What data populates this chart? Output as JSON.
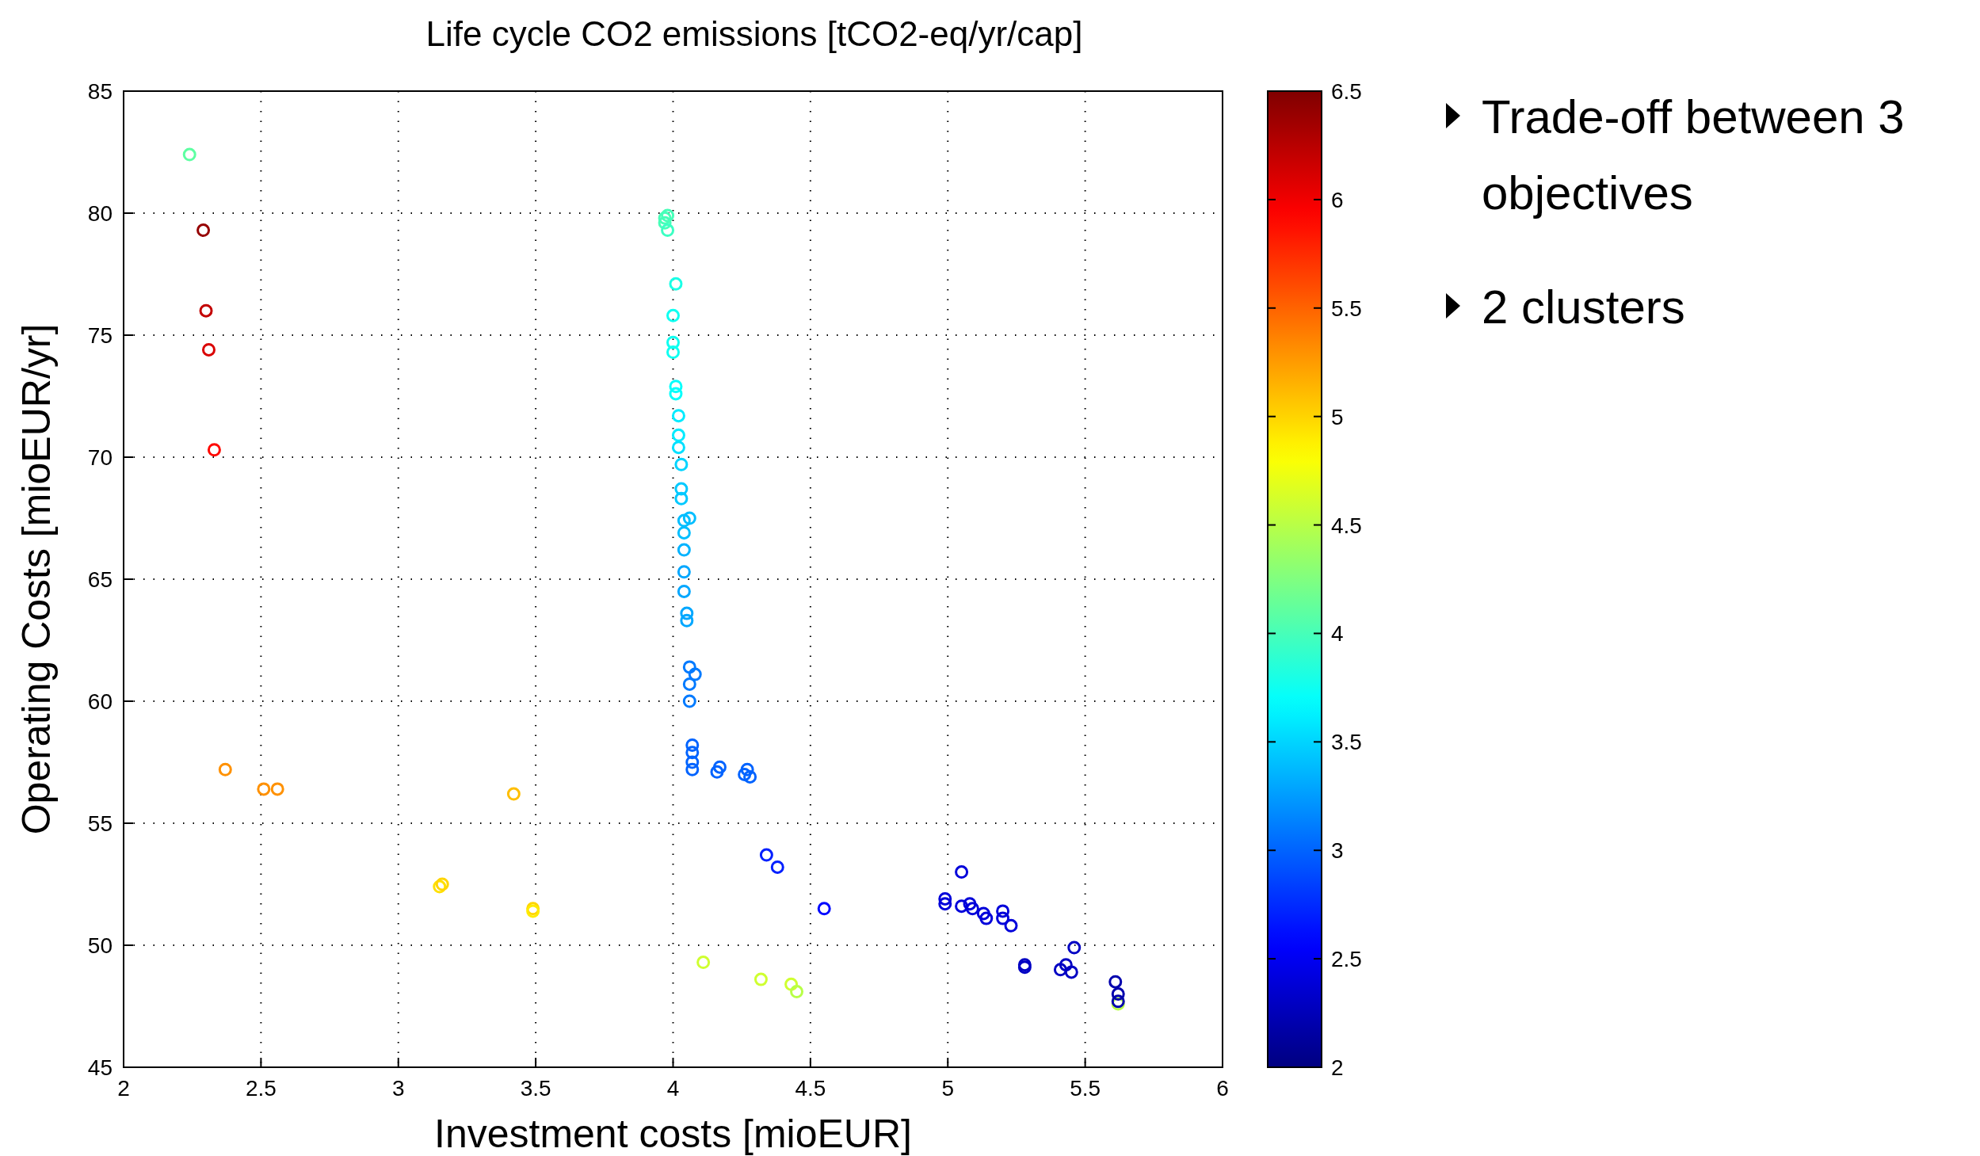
{
  "chart_data": {
    "type": "scatter",
    "title": "Life cycle CO2 emissions [tCO2-eq/yr/cap]",
    "xlabel": "Investment costs [mioEUR]",
    "ylabel": "Operating Costs [mioEUR/yr]",
    "annotations": [
      "Trade-off between 3 objectives",
      "2 clusters"
    ],
    "xlim": [
      2,
      6
    ],
    "xticks": [
      2,
      2.5,
      3,
      3.5,
      4,
      4.5,
      5,
      5.5,
      6
    ],
    "ylim": [
      45,
      85
    ],
    "yticks": [
      45,
      50,
      55,
      60,
      65,
      70,
      75,
      80,
      85
    ],
    "clim": [
      2,
      6.5
    ],
    "cticks": [
      2,
      2.5,
      3,
      3.5,
      4,
      4.5,
      5,
      5.5,
      6,
      6.5
    ],
    "grid": true,
    "marker": "circle",
    "series": [
      {
        "x": [
          2.24,
          2.29,
          2.3,
          2.31,
          2.33,
          2.37,
          2.51,
          2.56,
          3.42,
          3.15,
          3.16,
          3.49,
          3.49,
          4.11,
          4.32,
          4.43,
          4.45,
          5.62,
          3.97,
          3.98,
          3.97,
          3.98,
          4.01,
          4,
          4,
          4,
          4.01,
          4.01,
          4.02,
          4.02,
          4.02,
          4.03,
          4.03,
          4.03,
          4.04,
          4.06,
          4.04,
          4.04,
          4.04,
          4.04,
          4.05,
          4.05,
          4.06,
          4.08,
          4.06,
          4.06,
          4.07,
          4.07,
          4.07,
          4.07,
          4.17,
          4.16,
          4.27,
          4.26,
          4.28,
          4.34,
          4.38,
          4.55,
          4.99,
          4.99,
          5.05,
          5.05,
          5.08,
          5.09,
          5.13,
          5.14,
          5.2,
          5.2,
          5.23,
          5.28,
          5.28,
          5.41,
          5.43,
          5.46,
          5.45,
          5.61,
          5.62,
          5.62
        ],
        "values": [
          82.4,
          79.3,
          76,
          74.4,
          70.3,
          57.2,
          56.4,
          56.4,
          56.2,
          52.4,
          52.5,
          51.5,
          51.4,
          49.3,
          48.6,
          48.4,
          48.1,
          47.6,
          79.8,
          79.9,
          79.6,
          79.3,
          77.1,
          75.8,
          74.7,
          74.3,
          72.9,
          72.6,
          71.7,
          70.9,
          70.4,
          69.7,
          68.7,
          68.3,
          67.4,
          67.5,
          66.9,
          66.2,
          65.3,
          64.5,
          63.6,
          63.3,
          61.4,
          61.1,
          60.7,
          60,
          58.2,
          57.9,
          57.5,
          57.2,
          57.3,
          57.1,
          57.2,
          57,
          56.9,
          53.7,
          53.2,
          51.5,
          51.9,
          51.7,
          53,
          51.6,
          51.7,
          51.5,
          51.3,
          51.1,
          51.4,
          51.1,
          50.8,
          49.2,
          49.1,
          49,
          49.2,
          49.9,
          48.9,
          48.5,
          48,
          47.7
        ],
        "cvalues": [
          4.1,
          6.4,
          6.2,
          6.1,
          5.9,
          5.3,
          5.3,
          5.3,
          5.1,
          4.95,
          5,
          5,
          4.9,
          4.6,
          4.6,
          4.6,
          4.5,
          4.5,
          4,
          4,
          4,
          3.95,
          3.8,
          3.75,
          3.75,
          3.75,
          3.7,
          3.7,
          3.6,
          3.6,
          3.55,
          3.5,
          3.45,
          3.45,
          3.4,
          3.4,
          3.4,
          3.35,
          3.3,
          3.3,
          3.3,
          3.3,
          3.1,
          3.1,
          3.1,
          3.1,
          3,
          3,
          3,
          3,
          3,
          3,
          3,
          3,
          3,
          2.7,
          2.7,
          2.6,
          2.4,
          2.4,
          2.4,
          2.4,
          2.4,
          2.4,
          2.4,
          2.4,
          2.4,
          2.4,
          2.4,
          2.3,
          2.3,
          2.3,
          2.3,
          2.3,
          2.3,
          2.2,
          2.2,
          2.2
        ]
      }
    ]
  }
}
